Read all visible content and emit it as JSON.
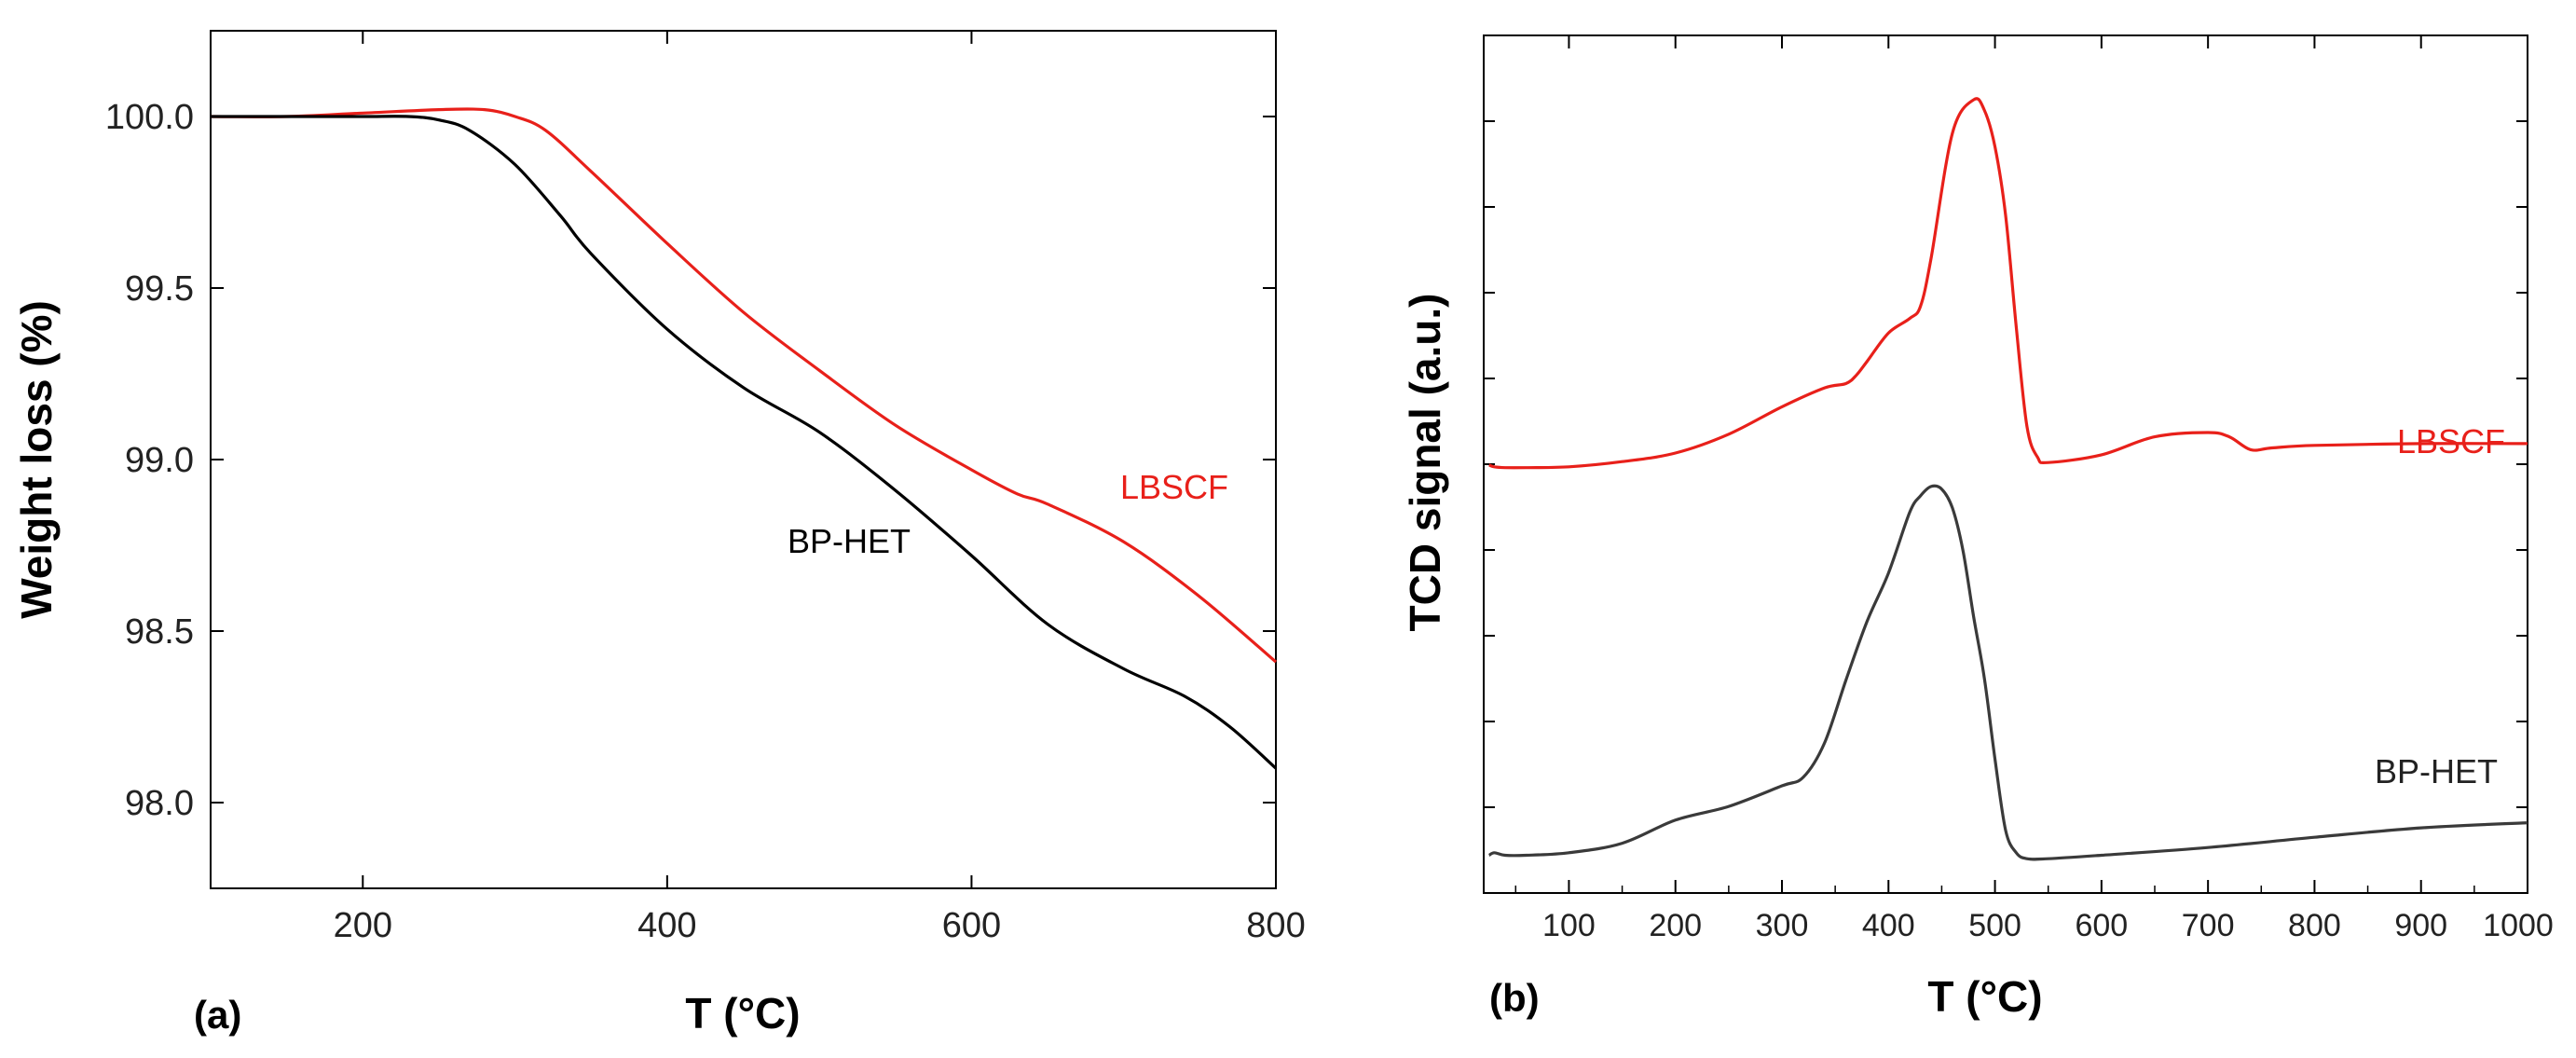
{
  "chart_data": [
    {
      "panel": "(a)",
      "type": "line",
      "title": "",
      "xlabel": "T (°C)",
      "ylabel": "Weight loss (%)",
      "xlim": [
        100,
        800
      ],
      "ylim": [
        97.75,
        100.25
      ],
      "xticks": [
        200,
        400,
        600,
        800
      ],
      "yticks": [
        "98.0",
        "98.5",
        "99.0",
        "99.5",
        "100.0"
      ],
      "grid": false,
      "series": [
        {
          "name": "LBSCF",
          "color": "#e8201a",
          "x": [
            100,
            150,
            200,
            250,
            280,
            300,
            320,
            350,
            400,
            450,
            500,
            550,
            600,
            630,
            650,
            700,
            750,
            800
          ],
          "y": [
            100.0,
            100.0,
            100.01,
            100.02,
            100.02,
            100.0,
            99.96,
            99.84,
            99.63,
            99.43,
            99.26,
            99.1,
            98.97,
            98.9,
            98.87,
            98.76,
            98.6,
            98.41
          ]
        },
        {
          "name": "BP-HET",
          "color": "#000000",
          "x": [
            100,
            150,
            200,
            230,
            250,
            270,
            300,
            330,
            350,
            400,
            450,
            500,
            550,
            600,
            650,
            700,
            740,
            770,
            800
          ],
          "y": [
            100.0,
            100.0,
            100.0,
            100.0,
            99.99,
            99.96,
            99.86,
            99.71,
            99.6,
            99.38,
            99.21,
            99.08,
            98.91,
            98.72,
            98.52,
            98.39,
            98.31,
            98.22,
            98.1
          ]
        }
      ]
    },
    {
      "panel": "(b)",
      "type": "line",
      "title": "",
      "xlabel": "T (°C)",
      "ylabel": "TCD signal (a.u.)",
      "xlim": [
        20,
        1000
      ],
      "ylim": [
        0,
        100
      ],
      "xticks": [
        100,
        200,
        300,
        400,
        500,
        600,
        700,
        800,
        900,
        1000
      ],
      "yticks_unlabeled": true,
      "grid": false,
      "series": [
        {
          "name": "LBSCF",
          "color": "#e8201a",
          "x": [
            25,
            30,
            40,
            60,
            100,
            150,
            200,
            250,
            300,
            340,
            360,
            370,
            380,
            400,
            420,
            430,
            440,
            460,
            480,
            490,
            500,
            510,
            520,
            530,
            540,
            550,
            600,
            650,
            700,
            720,
            740,
            760,
            800,
            900,
            1000
          ],
          "y": [
            49.9,
            49.7,
            49.6,
            49.6,
            49.7,
            50.3,
            51.3,
            53.5,
            56.7,
            58.9,
            59.4,
            60.4,
            62.0,
            65.3,
            67.0,
            68.4,
            74.0,
            88.6,
            92.5,
            91.3,
            87.0,
            79.0,
            66.0,
            54.4,
            50.8,
            50.2,
            51.1,
            53.2,
            53.7,
            53.2,
            51.7,
            51.9,
            52.2,
            52.4,
            52.4
          ]
        },
        {
          "name": "BP-HET",
          "color": "#3a3a3a",
          "x": [
            25,
            30,
            40,
            60,
            100,
            150,
            200,
            250,
            300,
            320,
            340,
            360,
            380,
            400,
            420,
            430,
            440,
            450,
            460,
            470,
            480,
            490,
            500,
            510,
            520,
            530,
            550,
            600,
            700,
            800,
            900,
            1000
          ],
          "y": [
            4.4,
            4.7,
            4.4,
            4.4,
            4.7,
            5.8,
            8.5,
            10.1,
            12.5,
            13.5,
            17.5,
            24.8,
            31.7,
            37.3,
            44.4,
            46.3,
            47.4,
            47.1,
            44.9,
            39.9,
            32.2,
            25.1,
            15.6,
            7.3,
            4.7,
            4.0,
            4.0,
            4.4,
            5.3,
            6.5,
            7.6,
            8.2
          ]
        }
      ]
    }
  ]
}
